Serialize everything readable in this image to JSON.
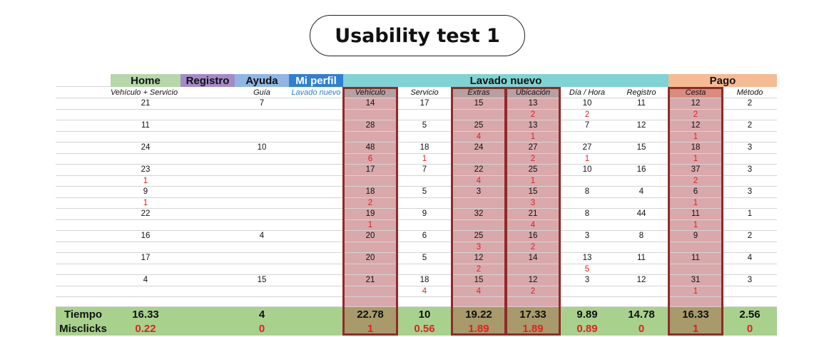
{
  "header": {
    "title": "Usability test 1"
  },
  "table": {
    "groups": [
      "Home",
      "Registro",
      "Ayuda",
      "Mi perfil",
      "Lavado nuevo",
      "Pago"
    ],
    "subheaders": [
      "Vehículo + Servicio",
      null,
      "Guía",
      "Lavado nuevo",
      "Vehículo",
      "Servicio",
      "Extras",
      "Ubicación",
      "Día / Hora",
      "Registro",
      "Cesta",
      "Método"
    ],
    "rows": [
      {
        "time": [
          21,
          null,
          7,
          null,
          14,
          17,
          15,
          13,
          10,
          11,
          12,
          2
        ],
        "misclicks": [
          null,
          null,
          null,
          null,
          null,
          null,
          null,
          2,
          2,
          null,
          2,
          null
        ]
      },
      {
        "time": [
          11,
          null,
          null,
          null,
          28,
          5,
          25,
          13,
          7,
          12,
          12,
          2
        ],
        "misclicks": [
          null,
          null,
          null,
          null,
          null,
          null,
          4,
          1,
          null,
          null,
          1,
          null
        ]
      },
      {
        "time": [
          24,
          null,
          10,
          null,
          48,
          18,
          24,
          27,
          27,
          15,
          18,
          3
        ],
        "misclicks": [
          null,
          null,
          null,
          null,
          6,
          1,
          null,
          2,
          1,
          null,
          1,
          null
        ]
      },
      {
        "time": [
          23,
          null,
          null,
          null,
          17,
          7,
          22,
          25,
          10,
          16,
          37,
          3
        ],
        "misclicks": [
          1,
          null,
          null,
          null,
          null,
          null,
          4,
          1,
          null,
          null,
          2,
          null
        ]
      },
      {
        "time": [
          9,
          null,
          null,
          null,
          18,
          5,
          3,
          15,
          8,
          4,
          6,
          3
        ],
        "misclicks": [
          1,
          null,
          null,
          null,
          2,
          null,
          null,
          3,
          null,
          null,
          1,
          null
        ]
      },
      {
        "time": [
          22,
          null,
          null,
          null,
          19,
          9,
          32,
          21,
          8,
          44,
          11,
          1
        ],
        "misclicks": [
          null,
          null,
          null,
          null,
          1,
          null,
          null,
          4,
          null,
          null,
          1,
          null
        ]
      },
      {
        "time": [
          16,
          null,
          4,
          null,
          20,
          6,
          25,
          16,
          3,
          8,
          9,
          2
        ],
        "misclicks": [
          null,
          null,
          null,
          null,
          null,
          null,
          3,
          2,
          null,
          null,
          null,
          null
        ]
      },
      {
        "time": [
          17,
          null,
          null,
          null,
          20,
          5,
          12,
          14,
          13,
          11,
          11,
          4
        ],
        "misclicks": [
          null,
          null,
          null,
          null,
          null,
          null,
          2,
          null,
          5,
          null,
          null,
          null
        ]
      },
      {
        "time": [
          4,
          null,
          15,
          null,
          21,
          18,
          15,
          12,
          3,
          12,
          31,
          3
        ],
        "misclicks": [
          null,
          null,
          null,
          null,
          null,
          4,
          4,
          2,
          null,
          null,
          1,
          null
        ]
      }
    ],
    "summary": [
      {
        "label": "Tiempo",
        "values": [
          16.33,
          null,
          4,
          null,
          22.78,
          10,
          19.22,
          17.33,
          9.89,
          14.78,
          16.33,
          2.56
        ]
      },
      {
        "label": "Misclicks",
        "values": [
          0.22,
          null,
          0,
          null,
          1,
          0.56,
          1.89,
          1.89,
          0.89,
          0,
          1,
          0
        ]
      }
    ]
  }
}
